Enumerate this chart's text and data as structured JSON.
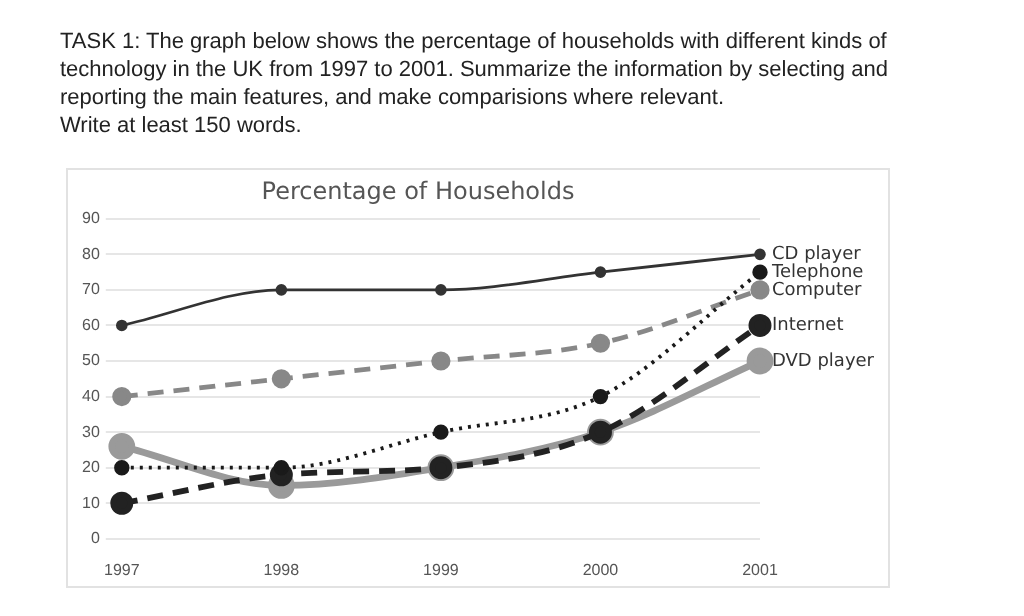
{
  "chart_data": {
    "type": "line",
    "title": "Percentage of Households",
    "annotations": [
      "TASK 1: The graph below shows the percentage of households with different kinds of technology in the UK from 1997 to 2001. Summarize the information by selecting and reporting the main features, and make comparisions where relevant.",
      "Write at least 150 words."
    ],
    "categories": [
      "1997",
      "1998",
      "1999",
      "2000",
      "2001"
    ],
    "series": [
      {
        "name": "CD player",
        "color": "#333333",
        "values": [
          60,
          70,
          70,
          75,
          80
        ],
        "line_style": "solid"
      },
      {
        "name": "Telephone",
        "color": "#1a1a1a",
        "values": [
          20,
          20,
          30,
          40,
          75
        ],
        "line_style": "dotted"
      },
      {
        "name": "Computer",
        "color": "#888888",
        "values": [
          40,
          45,
          50,
          55,
          70
        ],
        "line_style": "dashed"
      },
      {
        "name": "Internet",
        "color": "#222222",
        "values": [
          10,
          18,
          20,
          30,
          60
        ],
        "line_style": "dashed"
      },
      {
        "name": "DVD player",
        "color": "#9a9a9a",
        "values": [
          26,
          15,
          20,
          30,
          50
        ],
        "line_style": "solid"
      }
    ],
    "ylim": [
      0,
      90
    ],
    "yticks": [
      0,
      10,
      20,
      30,
      40,
      50,
      60,
      70,
      80,
      90
    ],
    "grid": "y",
    "legend": false,
    "marker": "circle"
  }
}
